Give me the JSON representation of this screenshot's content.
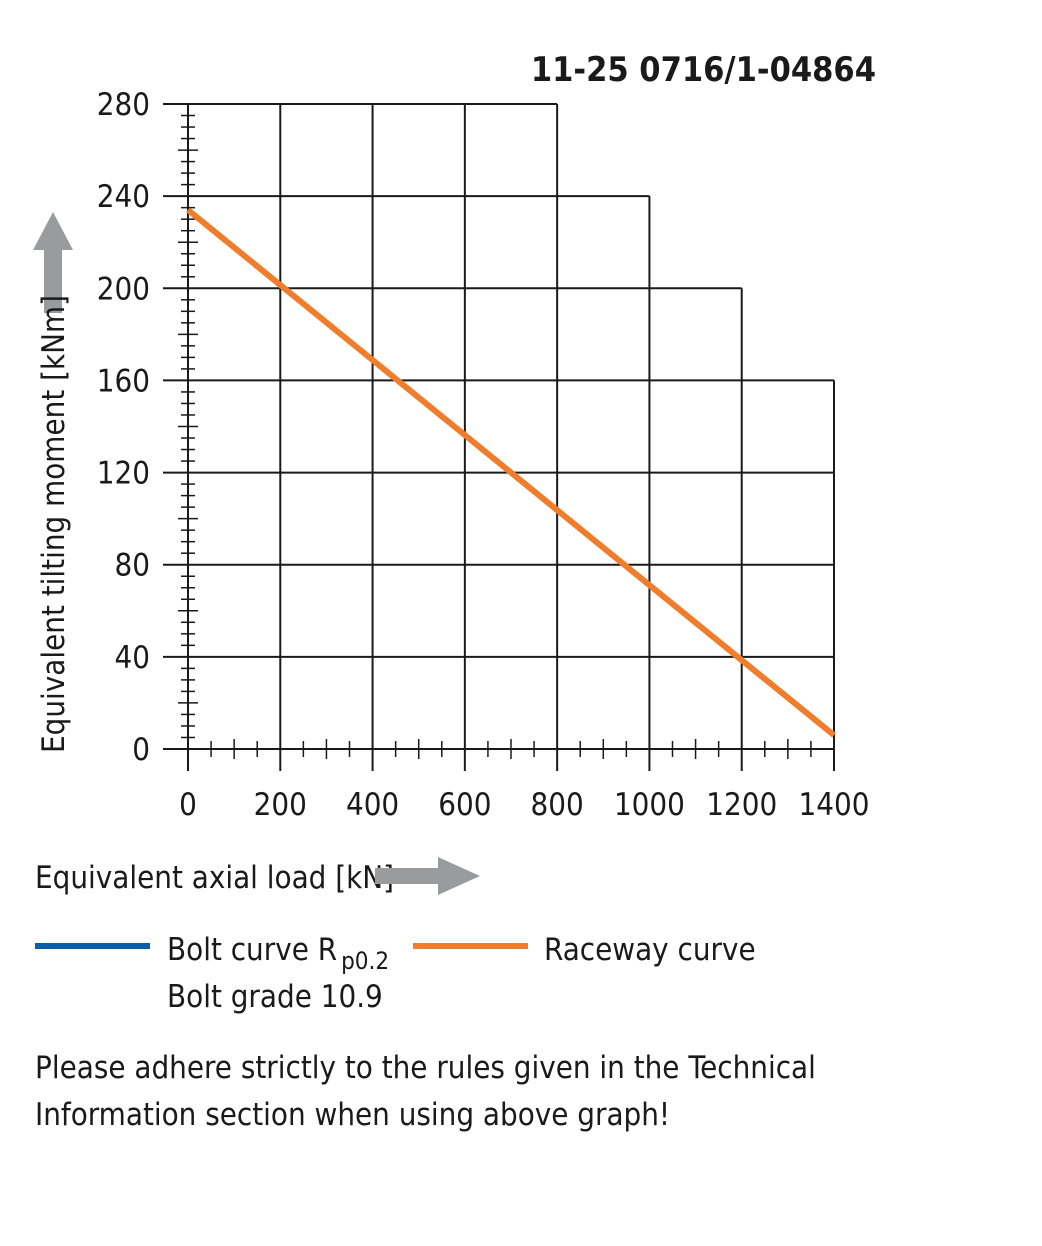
{
  "chart_data": {
    "type": "line",
    "title": "11-25 0716/1-04864",
    "xlabel": "Equivalent axial load [kN]",
    "ylabel": "Equivalent tilting moment [kNm]",
    "xlim": [
      0,
      1400
    ],
    "ylim": [
      0,
      280
    ],
    "x_ticks": [
      0,
      200,
      400,
      600,
      800,
      1000,
      1200,
      1400
    ],
    "y_ticks": [
      0,
      40,
      80,
      120,
      160,
      200,
      240,
      280
    ],
    "grid": true,
    "series": [
      {
        "name": "Raceway curve",
        "color": "#f07d2b",
        "x": [
          0,
          1400
        ],
        "y": [
          234,
          6
        ]
      }
    ],
    "legend": [
      {
        "name": "Bolt curve  R",
        "subscript": "p0.2",
        "line2": "Bolt grade 10.9",
        "color": "#0a5ea8"
      },
      {
        "name": "Raceway curve",
        "color": "#f07d2b"
      }
    ]
  },
  "colors": {
    "arrow": "#9a9b9d",
    "grid": "#1a1a1a"
  },
  "note": {
    "line1": "Please adhere strictly to the rules given in the Technical",
    "line2": "Information section when using above graph!"
  }
}
